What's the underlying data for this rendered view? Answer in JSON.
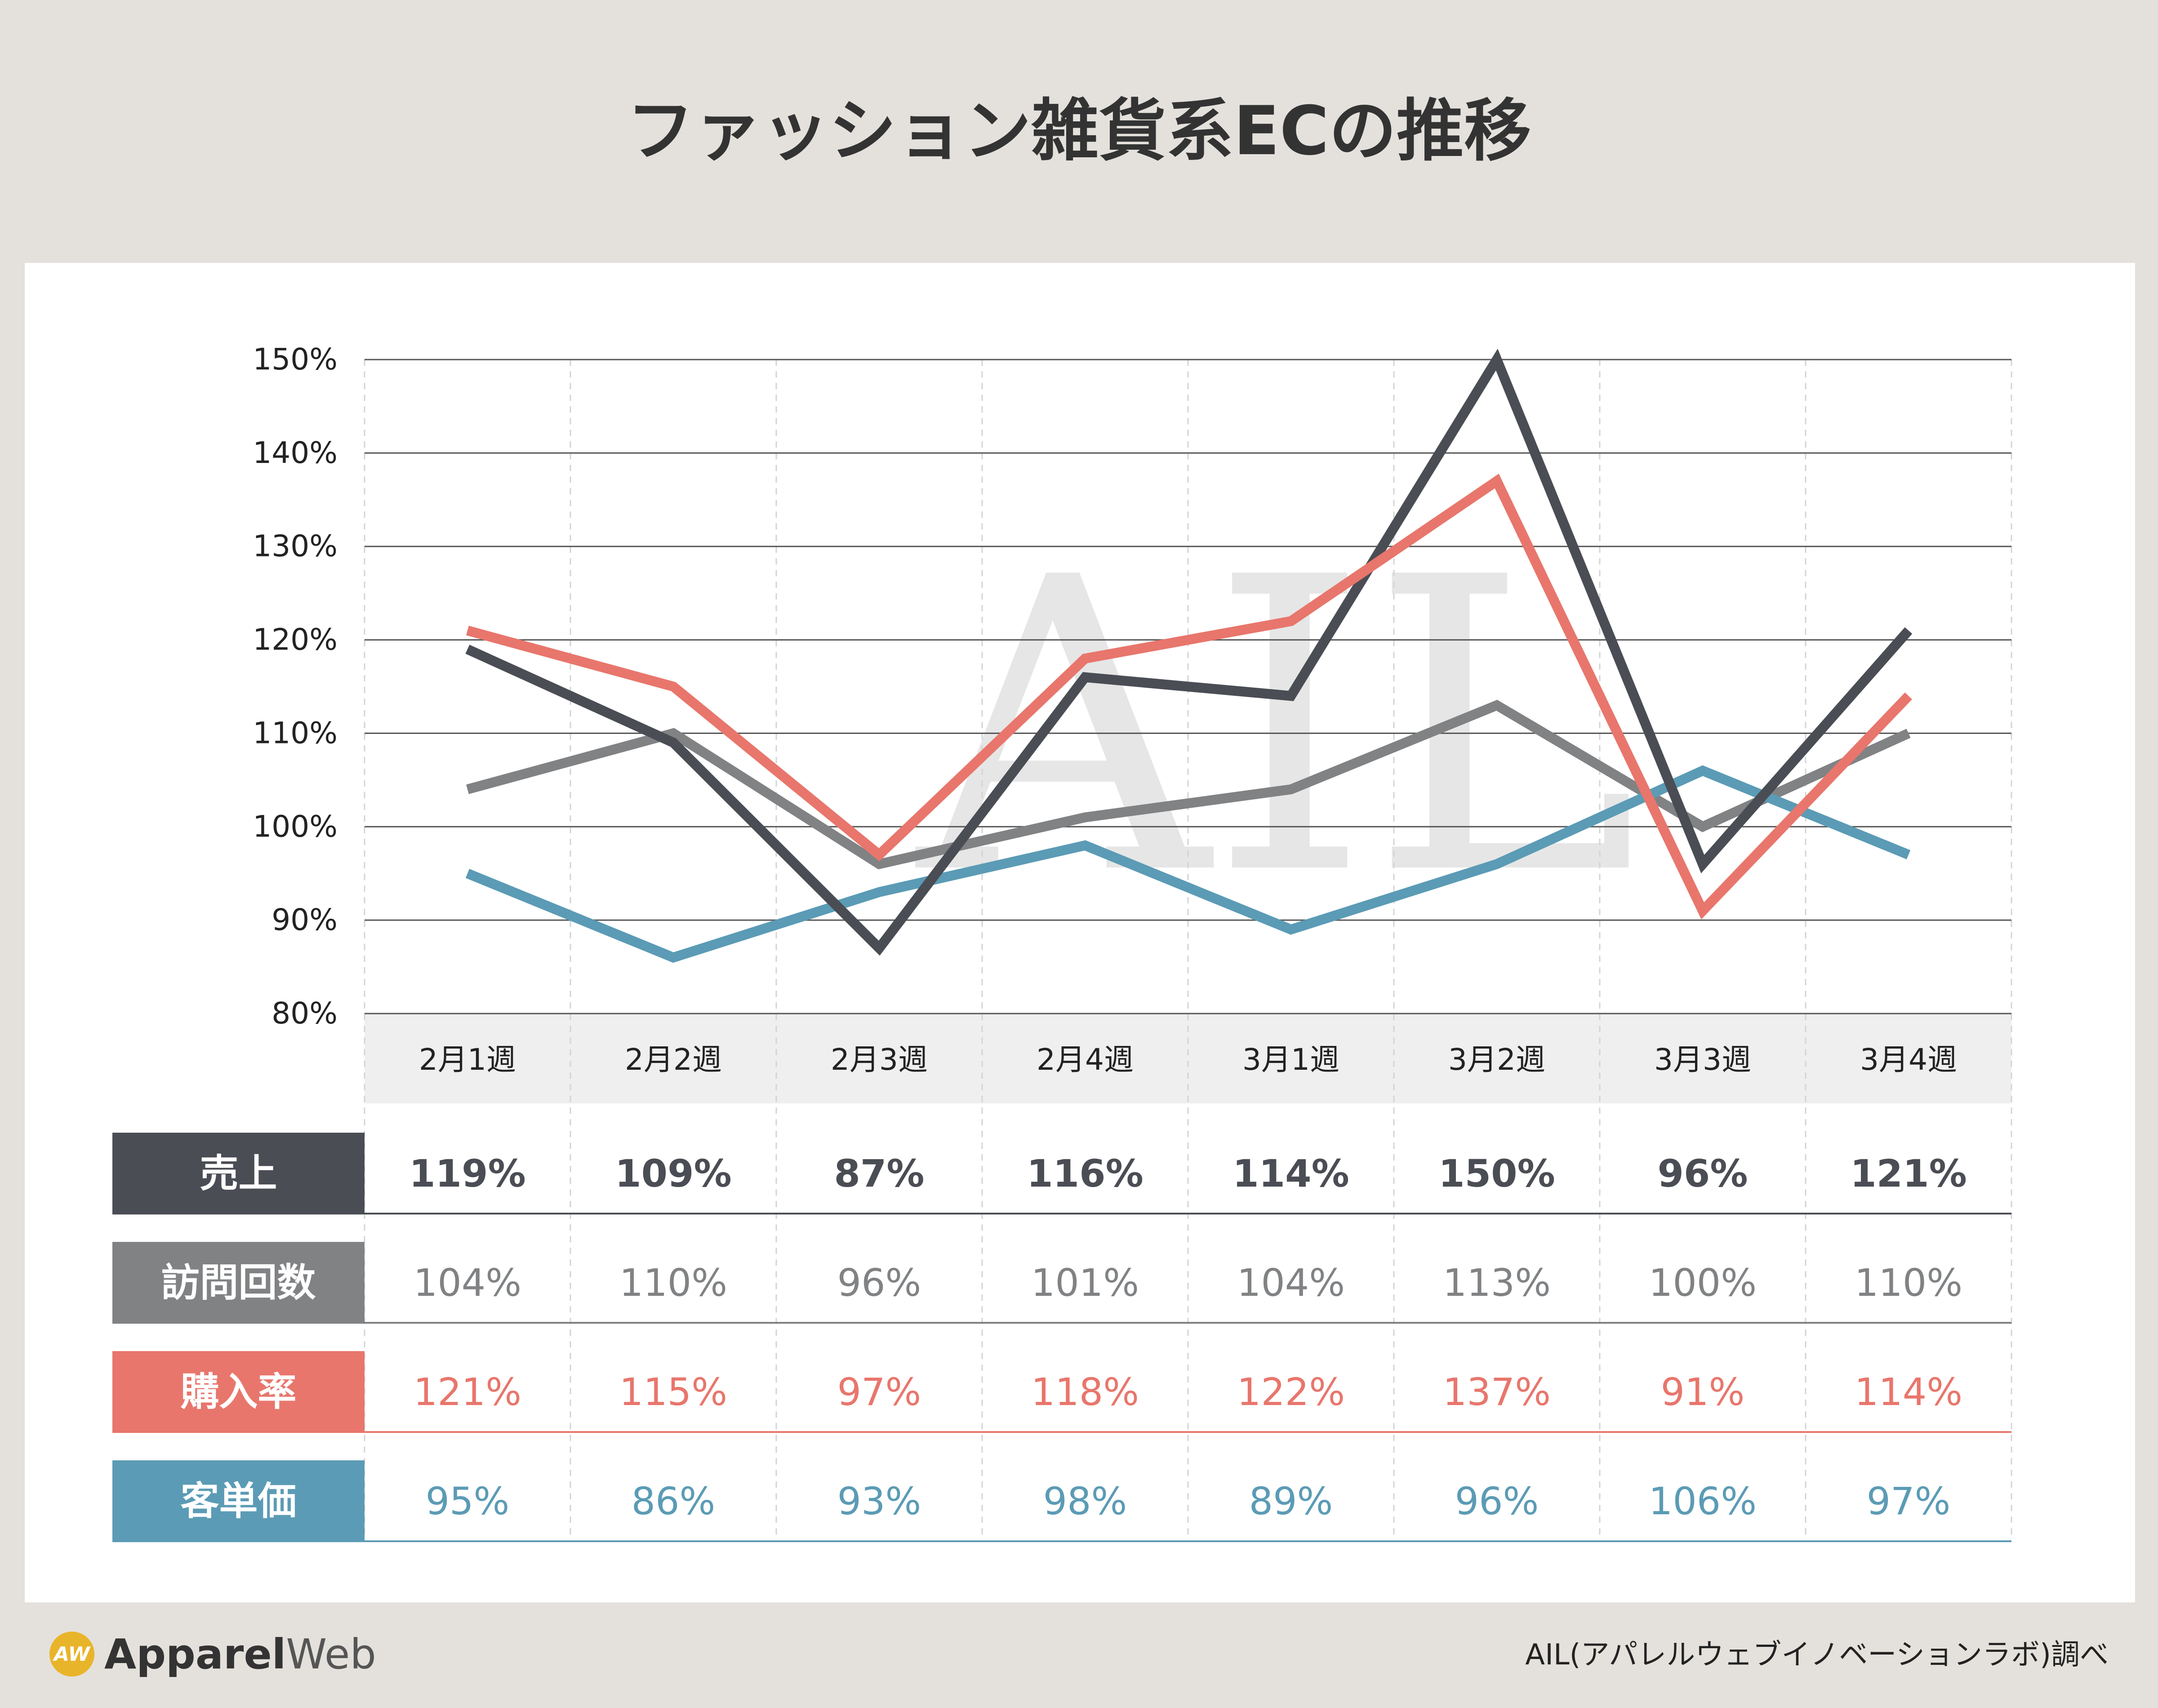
{
  "title": "ファッション雑貨系ECの推移",
  "watermark": "AIL",
  "logo": {
    "mark_text": "AW",
    "brand_part1": "Apparel",
    "brand_part2": "Web"
  },
  "source": "AIL(アパレルウェブイノベーションラボ)調べ",
  "colors": {
    "page_bg": "#e4e1dc",
    "panel_bg": "#ffffff",
    "header_bg": "#efefef",
    "grid": "#555555",
    "watermark": "#e6e6e6",
    "sales": "#4b4d55",
    "visits": "#808284",
    "conversion": "#e8766c",
    "order_value": "#5b9bb5",
    "logo_accent": "#e8b42a"
  },
  "chart_data": {
    "type": "line",
    "title": "ファッション雑貨系ECの推移",
    "categories": [
      "2月1週",
      "2月2週",
      "2月3週",
      "2月4週",
      "3月1週",
      "3月2週",
      "3月3週",
      "3月4週"
    ],
    "yticks": [
      "80%",
      "90%",
      "100%",
      "110%",
      "120%",
      "130%",
      "140%",
      "150%"
    ],
    "ylim": [
      80,
      150
    ],
    "grid": true,
    "series": [
      {
        "name": "売上",
        "color": "#4b4d55",
        "values": [
          119,
          109,
          87,
          116,
          114,
          150,
          96,
          121
        ],
        "labels": [
          "119%",
          "109%",
          "87%",
          "116%",
          "114%",
          "150%",
          "96%",
          "121%"
        ]
      },
      {
        "name": "訪問回数",
        "color": "#808284",
        "values": [
          104,
          110,
          96,
          101,
          104,
          113,
          100,
          110
        ],
        "labels": [
          "104%",
          "110%",
          "96%",
          "101%",
          "104%",
          "113%",
          "100%",
          "110%"
        ]
      },
      {
        "name": "購入率",
        "color": "#e8766c",
        "values": [
          121,
          115,
          97,
          118,
          122,
          137,
          91,
          114
        ],
        "labels": [
          "121%",
          "115%",
          "97%",
          "118%",
          "122%",
          "137%",
          "91%",
          "114%"
        ]
      },
      {
        "name": "客単価",
        "color": "#5b9bb5",
        "values": [
          95,
          86,
          93,
          98,
          89,
          96,
          106,
          97
        ],
        "labels": [
          "95%",
          "86%",
          "93%",
          "98%",
          "89%",
          "96%",
          "106%",
          "97%"
        ]
      }
    ]
  }
}
